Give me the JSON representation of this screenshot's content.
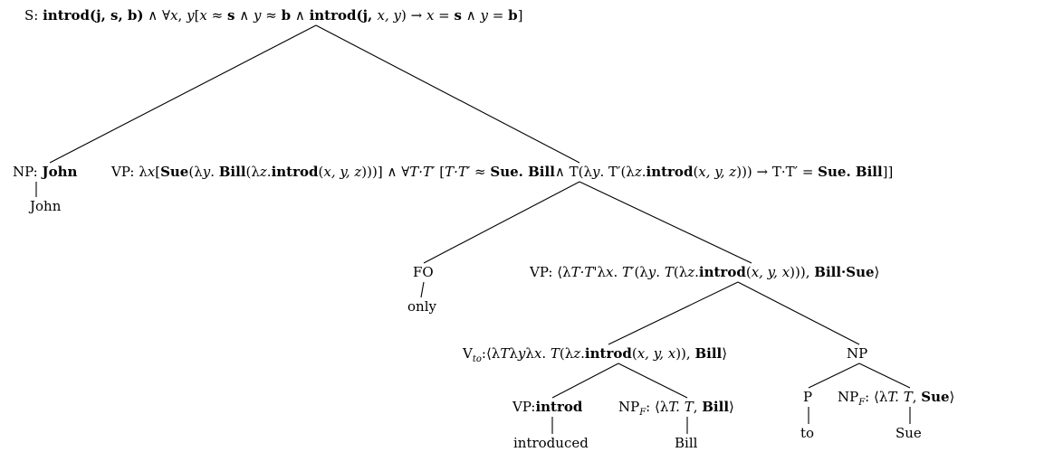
{
  "tree": {
    "nodes": {
      "root": {
        "segments": [
          {
            "t": "S: ",
            "s": "n"
          },
          {
            "t": "introd(j, s, b)",
            "s": "b"
          },
          {
            "t": " ∧ ∀",
            "s": "n"
          },
          {
            "t": "x",
            "s": "i"
          },
          {
            "t": ", ",
            "s": "n"
          },
          {
            "t": "y",
            "s": "i"
          },
          {
            "t": "[",
            "s": "n"
          },
          {
            "t": "x",
            "s": "i"
          },
          {
            "t": " ≈ ",
            "s": "n"
          },
          {
            "t": "s",
            "s": "b"
          },
          {
            "t": " ∧ ",
            "s": "n"
          },
          {
            "t": "y",
            "s": "i"
          },
          {
            "t": " ≈ ",
            "s": "n"
          },
          {
            "t": "b",
            "s": "b"
          },
          {
            "t": " ∧ ",
            "s": "n"
          },
          {
            "t": "introd(j, ",
            "s": "b"
          },
          {
            "t": "x, y",
            "s": "i"
          },
          {
            "t": ") → ",
            "s": "n"
          },
          {
            "t": "x",
            "s": "i"
          },
          {
            "t": " = ",
            "s": "n"
          },
          {
            "t": "s",
            "s": "b"
          },
          {
            "t": " ∧ ",
            "s": "n"
          },
          {
            "t": "y",
            "s": "i"
          },
          {
            "t": " = ",
            "s": "n"
          },
          {
            "t": "b",
            "s": "b"
          },
          {
            "t": "]",
            "s": "n"
          }
        ]
      },
      "np_john": {
        "segments": [
          {
            "t": "NP: ",
            "s": "n"
          },
          {
            "t": "John",
            "s": "b"
          }
        ]
      },
      "john_leaf": {
        "segments": [
          {
            "t": "John",
            "s": "n"
          }
        ]
      },
      "vp_top": {
        "segments": [
          {
            "t": "VP: λ",
            "s": "n"
          },
          {
            "t": "x",
            "s": "i"
          },
          {
            "t": "[",
            "s": "n"
          },
          {
            "t": "Sue",
            "s": "b"
          },
          {
            "t": "(λ",
            "s": "n"
          },
          {
            "t": "y",
            "s": "i"
          },
          {
            "t": ". ",
            "s": "n"
          },
          {
            "t": "Bill",
            "s": "b"
          },
          {
            "t": "(λ",
            "s": "n"
          },
          {
            "t": "z",
            "s": "i"
          },
          {
            "t": ".",
            "s": "n"
          },
          {
            "t": "introd",
            "s": "b"
          },
          {
            "t": "(",
            "s": "n"
          },
          {
            "t": "x, y, z",
            "s": "i"
          },
          {
            "t": ")))] ∧ ∀",
            "s": "n"
          },
          {
            "t": "T·T′",
            "s": "i"
          },
          {
            "t": " [",
            "s": "n"
          },
          {
            "t": "T·T′",
            "s": "i"
          },
          {
            "t": " ≈ ",
            "s": "n"
          },
          {
            "t": "Sue. Bill",
            "s": "b"
          },
          {
            "t": "∧ T(λ",
            "s": "n"
          },
          {
            "t": "y",
            "s": "i"
          },
          {
            "t": ". T′(λ",
            "s": "n"
          },
          {
            "t": "z",
            "s": "i"
          },
          {
            "t": ".",
            "s": "n"
          },
          {
            "t": "introd",
            "s": "b"
          },
          {
            "t": "(",
            "s": "n"
          },
          {
            "t": "x, y, z",
            "s": "i"
          },
          {
            "t": "))) → T·T′ = ",
            "s": "n"
          },
          {
            "t": "Sue. Bill",
            "s": "b"
          },
          {
            "t": "]]",
            "s": "n"
          }
        ]
      },
      "fo": {
        "segments": [
          {
            "t": "FO",
            "s": "n"
          }
        ]
      },
      "only_leaf": {
        "segments": [
          {
            "t": "only",
            "s": "n"
          }
        ]
      },
      "vp_mid": {
        "segments": [
          {
            "t": "VP: ⟨λ",
            "s": "n"
          },
          {
            "t": "T·T",
            "s": "i"
          },
          {
            "t": "'λ",
            "s": "n"
          },
          {
            "t": "x",
            "s": "i"
          },
          {
            "t": ". ",
            "s": "n"
          },
          {
            "t": "T′",
            "s": "i"
          },
          {
            "t": "(λ",
            "s": "n"
          },
          {
            "t": "y",
            "s": "i"
          },
          {
            "t": ". ",
            "s": "n"
          },
          {
            "t": "T",
            "s": "i"
          },
          {
            "t": "(λ",
            "s": "n"
          },
          {
            "t": "z",
            "s": "i"
          },
          {
            "t": ".",
            "s": "n"
          },
          {
            "t": "introd",
            "s": "b"
          },
          {
            "t": "(",
            "s": "n"
          },
          {
            "t": "x, y, x",
            "s": "i"
          },
          {
            "t": "))), ",
            "s": "n"
          },
          {
            "t": "Bill·Sue",
            "s": "b"
          },
          {
            "t": "⟩",
            "s": "n"
          }
        ]
      },
      "vto": {
        "segments": [
          {
            "t": "V",
            "s": "n"
          },
          {
            "t": "to",
            "s": "sub"
          },
          {
            "t": ":⟨λ",
            "s": "n"
          },
          {
            "t": "T",
            "s": "i"
          },
          {
            "t": "λ",
            "s": "n"
          },
          {
            "t": "y",
            "s": "i"
          },
          {
            "t": "λ",
            "s": "n"
          },
          {
            "t": "x",
            "s": "i"
          },
          {
            "t": ". ",
            "s": "n"
          },
          {
            "t": "T",
            "s": "i"
          },
          {
            "t": "(λ",
            "s": "n"
          },
          {
            "t": "z",
            "s": "i"
          },
          {
            "t": ".",
            "s": "n"
          },
          {
            "t": "introd",
            "s": "b"
          },
          {
            "t": "(",
            "s": "n"
          },
          {
            "t": "x, y, x",
            "s": "i"
          },
          {
            "t": ")), ",
            "s": "n"
          },
          {
            "t": "Bill",
            "s": "b"
          },
          {
            "t": "⟩",
            "s": "n"
          }
        ]
      },
      "np_right": {
        "segments": [
          {
            "t": "NP",
            "s": "n"
          }
        ]
      },
      "vp_introd": {
        "segments": [
          {
            "t": "VP:",
            "s": "n"
          },
          {
            "t": "introd",
            "s": "b"
          }
        ]
      },
      "introduced_leaf": {
        "segments": [
          {
            "t": "introduced",
            "s": "n"
          }
        ]
      },
      "npf_bill": {
        "segments": [
          {
            "t": "NP",
            "s": "n"
          },
          {
            "t": "F",
            "s": "sub-i"
          },
          {
            "t": ": ⟨λ",
            "s": "n"
          },
          {
            "t": "T. T",
            "s": "i"
          },
          {
            "t": ", ",
            "s": "n"
          },
          {
            "t": "Bill",
            "s": "b"
          },
          {
            "t": "⟩",
            "s": "n"
          }
        ]
      },
      "bill_leaf": {
        "segments": [
          {
            "t": "Bill",
            "s": "n"
          }
        ]
      },
      "p": {
        "segments": [
          {
            "t": "P",
            "s": "n"
          }
        ]
      },
      "to_leaf": {
        "segments": [
          {
            "t": "to",
            "s": "n"
          }
        ]
      },
      "npf_sue": {
        "segments": [
          {
            "t": "NP",
            "s": "n"
          },
          {
            "t": "F",
            "s": "sub-i"
          },
          {
            "t": ": ⟨λ",
            "s": "n"
          },
          {
            "t": "T. T",
            "s": "i"
          },
          {
            "t": ", ",
            "s": "n"
          },
          {
            "t": "Sue",
            "s": "b"
          },
          {
            "t": "⟩",
            "s": "n"
          }
        ]
      },
      "sue_leaf": {
        "segments": [
          {
            "t": "Sue",
            "s": "n"
          }
        ]
      }
    },
    "edges": [
      [
        "root",
        "np_john"
      ],
      [
        "root",
        "vp_top"
      ],
      [
        "np_john",
        "john_leaf"
      ],
      [
        "vp_top",
        "fo"
      ],
      [
        "vp_top",
        "vp_mid"
      ],
      [
        "fo",
        "only_leaf"
      ],
      [
        "vp_mid",
        "vto"
      ],
      [
        "vp_mid",
        "np_right"
      ],
      [
        "vto",
        "vp_introd"
      ],
      [
        "vto",
        "npf_bill"
      ],
      [
        "vp_introd",
        "introduced_leaf"
      ],
      [
        "npf_bill",
        "bill_leaf"
      ],
      [
        "np_right",
        "p"
      ],
      [
        "np_right",
        "npf_sue"
      ],
      [
        "p",
        "to_leaf"
      ],
      [
        "npf_sue",
        "sue_leaf"
      ]
    ]
  }
}
